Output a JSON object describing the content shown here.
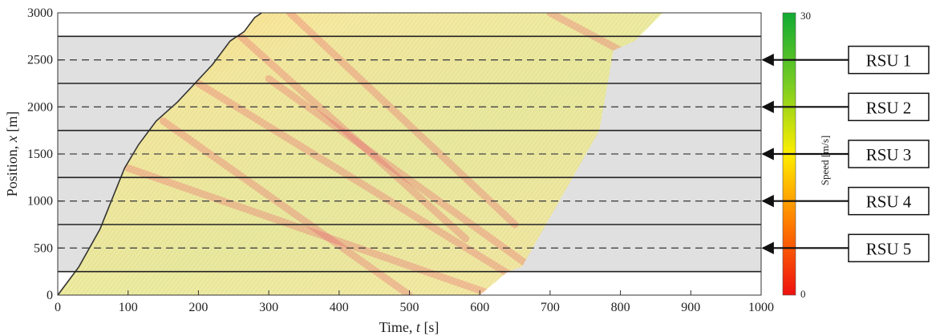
{
  "chart_data": {
    "type": "heatmap",
    "xlabel": "Time,",
    "xlabel_var": "t",
    "xlabel_unit": "[s]",
    "ylabel": "Position,",
    "ylabel_var": "x",
    "ylabel_unit": "[m]",
    "xlim": [
      0,
      1000
    ],
    "ylim": [
      0,
      3000
    ],
    "x_ticks": [
      "0",
      "100",
      "200",
      "300",
      "400",
      "500",
      "600",
      "700",
      "800",
      "900",
      "1000"
    ],
    "y_ticks": [
      "0",
      "500",
      "1000",
      "1500",
      "2000",
      "2500",
      "3000"
    ],
    "colorbar": {
      "label": "Speed [m/s]",
      "min": 0,
      "max": 30,
      "min_label": "0",
      "max_label": "30",
      "colors": [
        "#ee1111",
        "#ff7a00",
        "#ffee00",
        "#77cc22",
        "#11aa33"
      ]
    },
    "zone_boundaries": [
      250,
      750,
      1250,
      1750,
      2250,
      2750
    ],
    "rsu_positions": [
      500,
      1000,
      1500,
      2000,
      2500
    ],
    "rsus": [
      {
        "label": "RSU 1",
        "x": 2500
      },
      {
        "label": "RSU 2",
        "x": 2000
      },
      {
        "label": "RSU 3",
        "x": 1500
      },
      {
        "label": "RSU 4",
        "x": 1000
      },
      {
        "label": "RSU 5",
        "x": 500
      }
    ],
    "first_vehicle_trajectory": [
      [
        0,
        0
      ],
      [
        30,
        300
      ],
      [
        60,
        700
      ],
      [
        95,
        1350
      ],
      [
        115,
        1600
      ],
      [
        140,
        1850
      ],
      [
        170,
        2050
      ],
      [
        195,
        2250
      ],
      [
        220,
        2450
      ],
      [
        245,
        2700
      ],
      [
        265,
        2800
      ],
      [
        280,
        2950
      ],
      [
        290,
        3000
      ]
    ],
    "last_vehicle_trajectory": [
      [
        600,
        0
      ],
      [
        640,
        250
      ],
      [
        660,
        300
      ],
      [
        770,
        1750
      ],
      [
        790,
        2600
      ],
      [
        820,
        2700
      ],
      [
        860,
        3000
      ]
    ],
    "congestion_waves": [
      {
        "start": [
          100,
          1350
        ],
        "end": [
          620,
          0
        ]
      },
      {
        "start": [
          200,
          2250
        ],
        "end": [
          690,
          0
        ]
      },
      {
        "start": [
          260,
          2750
        ],
        "end": [
          580,
          600
        ]
      },
      {
        "start": [
          330,
          3000
        ],
        "end": [
          650,
          750
        ]
      },
      {
        "start": [
          150,
          1850
        ],
        "end": [
          500,
          0
        ]
      },
      {
        "start": [
          300,
          2300
        ],
        "end": [
          700,
          150
        ]
      },
      {
        "start": [
          700,
          3000
        ],
        "end": [
          800,
          2600
        ]
      }
    ]
  }
}
